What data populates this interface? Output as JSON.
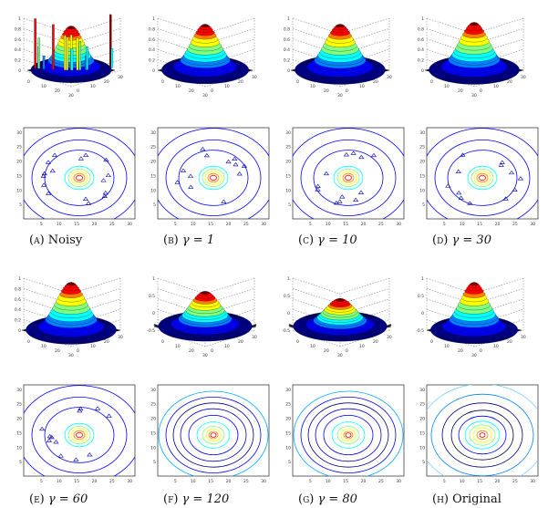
{
  "figure": {
    "panels": [
      {
        "letter": "(a)",
        "label": "Noisy",
        "mode": "noisy"
      },
      {
        "letter": "(b)",
        "label": "γ = 1",
        "mode": "smooth1"
      },
      {
        "letter": "(c)",
        "label": "γ = 10",
        "mode": "smooth2"
      },
      {
        "letter": "(d)",
        "label": "γ = 30",
        "mode": "smooth3"
      },
      {
        "letter": "(e)",
        "label": "γ = 60",
        "mode": "smooth3"
      },
      {
        "letter": "(f)",
        "label": "γ = 120",
        "mode": "flat"
      },
      {
        "letter": "(g)",
        "label": "γ = 80",
        "mode": "flat2"
      },
      {
        "letter": "(h)",
        "label": "Original",
        "mode": "orig"
      }
    ],
    "surface_z_ticks": [
      "0",
      "0.2",
      "0.4",
      "0.6",
      "0.8",
      "1"
    ],
    "surface_z_ticks_neg": [
      "-0.5",
      "0",
      "0.5",
      "1"
    ],
    "surface_xy_ticks": [
      "0",
      "10",
      "20",
      "30"
    ],
    "contour_y_ticks": [
      "5",
      "10",
      "15",
      "20",
      "25",
      "30"
    ],
    "contour_x_ticks": [
      "5",
      "10",
      "15",
      "20",
      "25",
      "30"
    ],
    "colormap": [
      "#00008f",
      "#0000ff",
      "#0080ff",
      "#00ffff",
      "#80ff80",
      "#ffff00",
      "#ff8000",
      "#ff0000",
      "#800000"
    ]
  }
}
